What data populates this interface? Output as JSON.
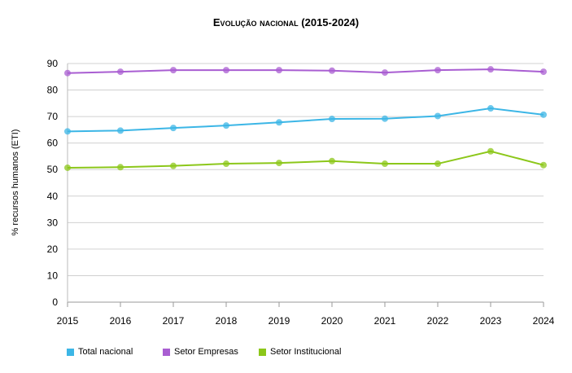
{
  "chart_data": {
    "type": "line",
    "title": "Evolução nacional (2015-2024)",
    "xlabel": "",
    "ylabel": "% recursos humanos (ETI)",
    "ylim": [
      0,
      90
    ],
    "yticks": [
      "0",
      "10",
      "20",
      "30",
      "40",
      "50",
      "60",
      "70",
      "80",
      "90"
    ],
    "grid": true,
    "legend": "bottom",
    "categories": [
      "2015",
      "2016",
      "2017",
      "2018",
      "2019",
      "2020",
      "2021",
      "2022",
      "2023",
      "2024"
    ],
    "series": [
      {
        "name": "Total nacional",
        "color": "#3cb6e6",
        "values": [
          64.4,
          64.7,
          65.7,
          66.6,
          67.8,
          69.1,
          69.2,
          70.2,
          73.1,
          70.7
        ]
      },
      {
        "name": "Setor Empresas",
        "color": "#a95ed2",
        "values": [
          86.4,
          86.9,
          87.5,
          87.5,
          87.5,
          87.3,
          86.6,
          87.5,
          87.8,
          86.9
        ]
      },
      {
        "name": "Setor Institucional",
        "color": "#8cc71a",
        "values": [
          50.7,
          50.9,
          51.4,
          52.2,
          52.5,
          53.2,
          52.2,
          52.2,
          56.9,
          51.7
        ]
      }
    ]
  }
}
